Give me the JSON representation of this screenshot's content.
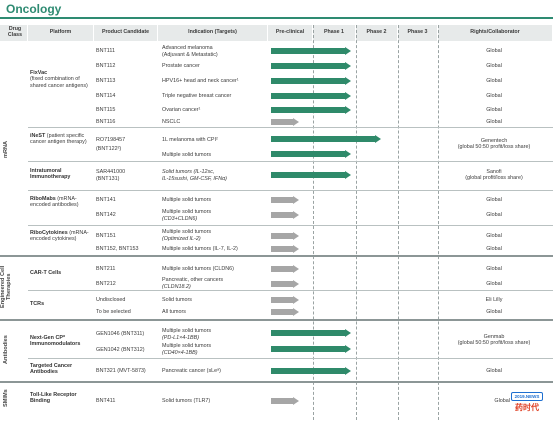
{
  "page_title": "Oncology",
  "headers": {
    "drug_class": "Drug Class",
    "platform": "Platform",
    "product": "Product Candidate",
    "indication": "Indication (Targets)",
    "preclinical": "Pre-clinical",
    "phase1": "Phase 1",
    "phase2": "Phase 2",
    "phase3": "Phase 3",
    "rights": "Rights/Collaborator"
  },
  "drug_classes": [
    "mRNA",
    "Engineered Cell Therapies",
    "Antibodies",
    "SMIMs"
  ],
  "platforms": {
    "fixvac_name": "FixVac",
    "fixvac_desc": "(fixed combination of shared cancer antigens)",
    "inest_name": "iNeST",
    "inest_desc": "(patient specific cancer antigen therapy)",
    "intratumoral": "Intratumoral Immunotherapy",
    "ribomabs_name": "RiboMabs",
    "ribomabs_desc": "(mRNA-encoded antibodies)",
    "ribocytokines_name": "RiboCytokines",
    "ribocytokines_desc": "(mRNA-encoded cytokines)",
    "cart": "CAR-T Cells",
    "tcrs": "TCRs",
    "nextgen": "Next-Gen CP* Immunomodulators",
    "targeted": "Targeted Cancer Antibodies",
    "tlr": "Toll-Like Receptor Binding"
  },
  "rows": [
    {
      "product": "BNT111",
      "indication": "Advanced melanoma",
      "indication2": "(Adjuvant & Metastatic)",
      "rights": "Global"
    },
    {
      "product": "BNT112",
      "indication": "Prostate cancer",
      "rights": "Global"
    },
    {
      "product": "BNT113",
      "indication": "HPV16+ head and neck cancer¹",
      "rights": "Global"
    },
    {
      "product": "BNT114",
      "indication": "Triple negative breast cancer",
      "rights": "Global"
    },
    {
      "product": "BNT115",
      "indication": "Ovarian cancer¹",
      "rights": "Global"
    },
    {
      "product": "BNT116",
      "indication": "NSCLC",
      "rights": "Global"
    },
    {
      "product": "RO7198457",
      "indication": "1L melanoma with CPI²",
      "rights": ""
    },
    {
      "product": "(BNT122²)",
      "indication": "Multiple solid tumors",
      "rights": ""
    },
    {
      "product": "SAR441000",
      "product2": "(BNT131)",
      "indication": "Solid tumors (IL-12sc,",
      "indication2": "IL-15sushi, GM-CSF, IFNα)",
      "rights": "Sanofi",
      "rights2": "(global profit/loss share)"
    },
    {
      "product": "BNT141",
      "indication": "Multiple solid tumors",
      "rights": "Global"
    },
    {
      "product": "BNT142",
      "indication": "Multiple solid tumors",
      "indication2": "(CD3+CLDN6)",
      "rights": "Global"
    },
    {
      "product": "BNT151",
      "indication": "Multiple solid tumors",
      "indication2": "(Optimized IL-2)",
      "rights": "Global"
    },
    {
      "product": "BNT152, BNT153",
      "indication": "Multiple solid tumors (IL-7, IL-2)",
      "rights": "Global"
    },
    {
      "product": "BNT211",
      "indication": "Multiple solid tumors (CLDN6)",
      "rights": "Global"
    },
    {
      "product": "BNT212",
      "indication": "Pancreatic, other cancers",
      "indication2": "(CLDN18.2)",
      "rights": "Global"
    },
    {
      "product": "Undisclosed",
      "indication": "Solid tumors",
      "rights": "Eli Lilly"
    },
    {
      "product": "To be selected",
      "indication": "All tumors",
      "rights": "Global"
    },
    {
      "product": "GEN1046 (BNT311)",
      "indication": "Multiple solid tumors",
      "indication2": "(PD-L1×4-1BB)",
      "rights": ""
    },
    {
      "product": "GEN1042 (BNT312)",
      "indication": "Multiple solid tumors",
      "indication2": "(CD40×4-1BB)",
      "rights": ""
    },
    {
      "product": "BNT321 (MVT-5873)",
      "indication": "Pancreatic cancer (sLeᵃ)",
      "rights": "Global"
    },
    {
      "product": "BNT411",
      "indication": "Solid tumors (TLR7)",
      "rights": "Global"
    }
  ],
  "merged_rights": {
    "genentech": "Genentech",
    "genentech2": "(global 50:50 profit/loss share)",
    "genmab": "Genmab",
    "genmab2": "(global 50:50 profit/loss share)"
  },
  "watermark": {
    "top": "2019.NEWS",
    "bottom": "药时代"
  },
  "colors": {
    "accent": "#2e8b72",
    "bar_green": "#2f8a6a",
    "bar_grey": "#a6a6a6",
    "header_bg": "#e7eaea"
  }
}
